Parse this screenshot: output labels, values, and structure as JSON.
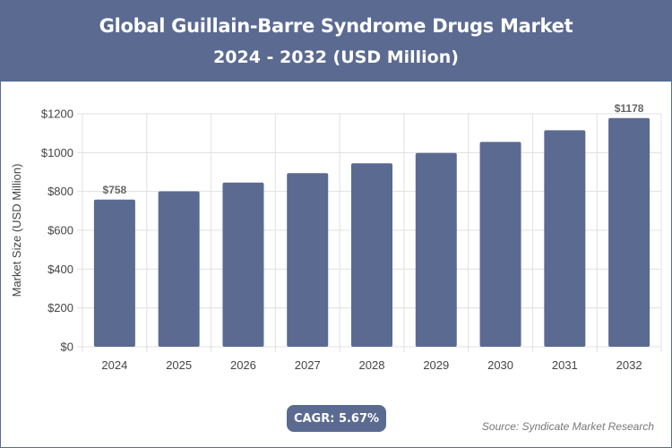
{
  "header": {
    "title": "Global Guillain-Barre Syndrome Drugs Market",
    "subtitle": "2024 - 2032 (USD Million)"
  },
  "footer": {
    "cagr_label": "CAGR: 5.67%",
    "source": "Source: Syndicate Market Research"
  },
  "colors": {
    "header_bg": "#5b6a91",
    "bar": "#5b6a91",
    "grid": "#e0e0e0",
    "axis_text": "#444444"
  },
  "chart_data": {
    "type": "bar",
    "title": "",
    "xlabel": "",
    "ylabel": "Market Size (USD Million)",
    "categories": [
      "2024",
      "2025",
      "2026",
      "2027",
      "2028",
      "2029",
      "2030",
      "2031",
      "2032"
    ],
    "values": [
      758,
      801,
      846,
      894,
      945,
      998,
      1055,
      1115,
      1178
    ],
    "data_labels": [
      {
        "category": "2024",
        "text": "$758"
      },
      {
        "category": "2032",
        "text": "$1178"
      }
    ],
    "ylim": [
      0,
      1200
    ],
    "y_ticks": [
      0,
      200,
      400,
      600,
      800,
      1000,
      1200
    ],
    "y_tick_labels": [
      "$0",
      "$200",
      "$400",
      "$600",
      "$800",
      "$1000",
      "$1200"
    ],
    "grid": true,
    "legend": "none"
  }
}
